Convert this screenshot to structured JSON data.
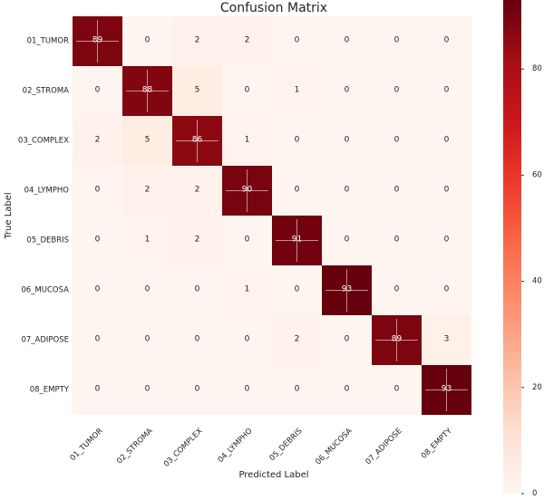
{
  "chart_data": {
    "type": "heatmap",
    "title": "Confusion Matrix",
    "xlabel": "Predicted Label",
    "ylabel": "True Label",
    "x_categories": [
      "01_TUMOR",
      "02_STROMA",
      "03_COMPLEX",
      "04_LYMPHO",
      "05_DEBRIS",
      "06_MUCOSA",
      "07_ADIPOSE",
      "08_EMPTY"
    ],
    "y_categories": [
      "01_TUMOR",
      "02_STROMA",
      "03_COMPLEX",
      "04_LYMPHO",
      "05_DEBRIS",
      "06_MUCOSA",
      "07_ADIPOSE",
      "08_EMPTY"
    ],
    "values": [
      [
        89,
        0,
        2,
        2,
        0,
        0,
        0,
        0
      ],
      [
        0,
        88,
        5,
        0,
        1,
        0,
        0,
        0
      ],
      [
        2,
        5,
        86,
        1,
        0,
        0,
        0,
        0
      ],
      [
        0,
        2,
        2,
        90,
        0,
        0,
        0,
        0
      ],
      [
        0,
        1,
        2,
        0,
        91,
        0,
        0,
        0
      ],
      [
        0,
        0,
        0,
        1,
        0,
        93,
        0,
        0
      ],
      [
        0,
        0,
        0,
        0,
        2,
        0,
        89,
        3
      ],
      [
        0,
        0,
        0,
        0,
        0,
        0,
        0,
        93
      ]
    ],
    "colorbar": {
      "range": [
        0,
        93
      ],
      "ticks": [
        "0",
        "20",
        "40",
        "60",
        "80"
      ],
      "colormap": "Reds"
    },
    "grid": false
  }
}
